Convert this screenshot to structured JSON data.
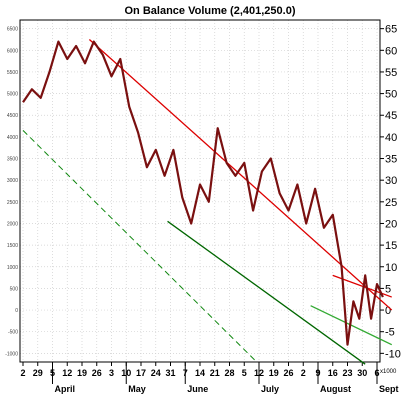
{
  "chart_data": {
    "type": "line",
    "title": "On Balance Volume (2,401,250.0)",
    "y_unit_label": "x1000",
    "ylim": [
      -12,
      67
    ],
    "yticks_right": [
      "65",
      "60",
      "55",
      "50",
      "45",
      "40",
      "35",
      "30",
      "25",
      "20",
      "15",
      "10",
      "5",
      "0",
      "-5",
      "-10"
    ],
    "yticks_left": [
      "6500",
      "6000",
      "5500",
      "5000",
      "4500",
      "4000",
      "3500",
      "3000",
      "2500",
      "2000",
      "1500",
      "1000",
      "500",
      "0",
      "-500",
      "-1000"
    ],
    "grid": true,
    "xday_labels": [
      "2",
      "29",
      "5",
      "12",
      "19",
      "26",
      "3",
      "10",
      "17",
      "24",
      "31",
      "7",
      "14",
      "21",
      "28",
      "5",
      "12",
      "19",
      "26",
      "2",
      "9",
      "16",
      "23",
      "30",
      "6"
    ],
    "xmonth_labels": [
      "April",
      "May",
      "June",
      "July",
      "August",
      "Sept"
    ],
    "series": [
      {
        "color": "#7a1010",
        "x": [
          0,
          0.6,
          1.2,
          1.8,
          2.4,
          3,
          3.6,
          4.2,
          4.8,
          5.4,
          6,
          6.6,
          7.2,
          7.8,
          8.4,
          9,
          9.6,
          10.2,
          10.8,
          11.4,
          12,
          12.6,
          13.2,
          13.8,
          14.4,
          15,
          15.6,
          16.2,
          16.8,
          17.4,
          18,
          18.6,
          19.2,
          19.8,
          20.4,
          21,
          21.6,
          22,
          22.4,
          22.8,
          23.2,
          23.6,
          24,
          24.4
        ],
        "y": [
          48,
          51,
          49,
          55,
          62,
          58,
          61,
          57,
          62,
          59,
          54,
          58,
          47,
          41,
          33,
          37,
          31,
          37,
          26,
          20,
          29,
          25,
          42,
          34,
          31,
          34,
          23,
          32,
          35,
          27,
          23,
          29,
          20,
          28,
          19,
          22,
          10,
          -8,
          2,
          -2,
          8,
          -2,
          6,
          3
        ]
      }
    ],
    "trendlines": [
      {
        "color": "#dd0000",
        "style": "solid",
        "from": [
          4.5,
          62.5
        ],
        "to": [
          25,
          0
        ]
      },
      {
        "color": "#dd0000",
        "style": "solid",
        "from": [
          21,
          8
        ],
        "to": [
          25,
          3
        ]
      },
      {
        "color": "#006600",
        "style": "solid",
        "from": [
          9.8,
          20.5
        ],
        "to": [
          23.2,
          -12.5
        ]
      },
      {
        "color": "#118811",
        "style": "dashed",
        "from": [
          0,
          41.5
        ],
        "to": [
          15.7,
          -11.5
        ]
      },
      {
        "color": "#33aa33",
        "style": "solid",
        "from": [
          19.5,
          1
        ],
        "to": [
          25,
          -8
        ]
      }
    ]
  }
}
